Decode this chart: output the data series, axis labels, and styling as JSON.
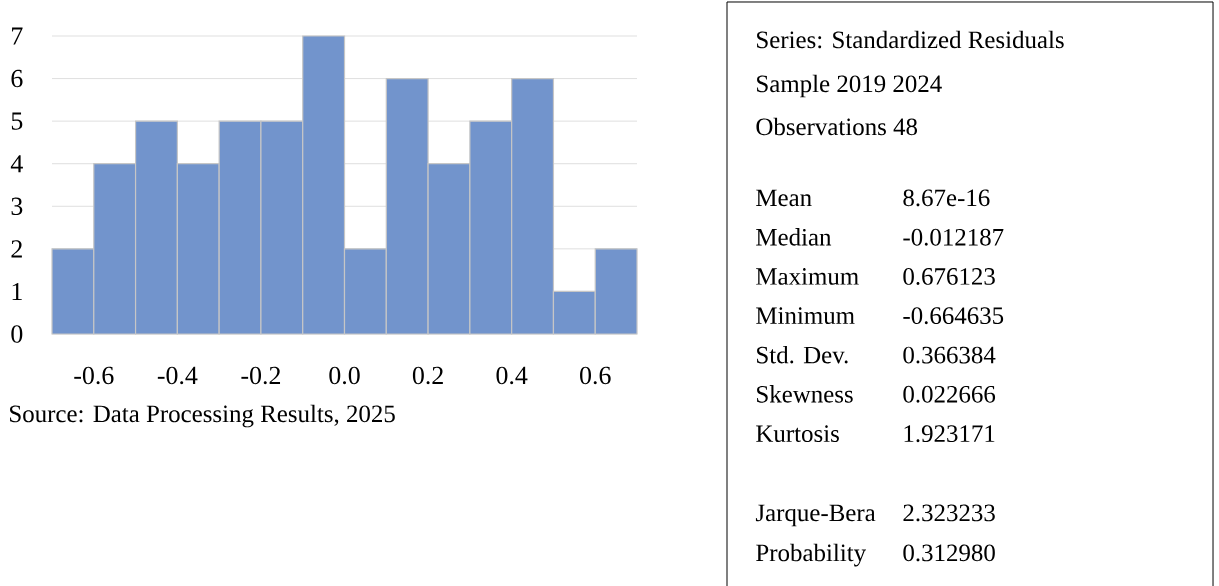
{
  "chart_data": {
    "type": "histogram",
    "bins": [
      -0.7,
      -0.6,
      -0.5,
      -0.4,
      -0.3,
      -0.2,
      -0.1,
      0.0,
      0.1,
      0.2,
      0.3,
      0.4,
      0.5,
      0.6,
      0.7
    ],
    "values": [
      2,
      4,
      5,
      4,
      5,
      5,
      7,
      2,
      6,
      4,
      5,
      6,
      1,
      2
    ],
    "color": "#7294cc",
    "xlim": [
      -0.7,
      0.7
    ],
    "xticks": [
      {
        "value": -0.6,
        "label": "-0.6"
      },
      {
        "value": -0.4,
        "label": "-0.4"
      },
      {
        "value": -0.2,
        "label": "-0.2"
      },
      {
        "value": 0,
        "label": "0.0"
      },
      {
        "value": 0.2,
        "label": "0.2"
      },
      {
        "value": 0.4,
        "label": "0.4"
      },
      {
        "value": 0.6,
        "label": "0.6"
      }
    ],
    "ylim": [
      0,
      7
    ],
    "yticks": [
      0,
      1,
      2,
      3,
      4,
      5,
      6,
      7
    ],
    "grid": "y",
    "annotations": [
      "Source: Data Processing Results, 2025",
      "Series: Standardized Residuals",
      "Sample 2019 2024",
      "Observations  48",
      "Mean",
      "8.67e-16",
      "Median",
      "-0.012187",
      "Maximum",
      "0.676123",
      "Minimum",
      "-0.664635",
      "Std. Dev.",
      "0.366384",
      "Skewness",
      "0.022666",
      "Kurtosis",
      "1.923171",
      "Jarque-Bera",
      "2.323233",
      "Probability",
      "0.312980"
    ]
  }
}
